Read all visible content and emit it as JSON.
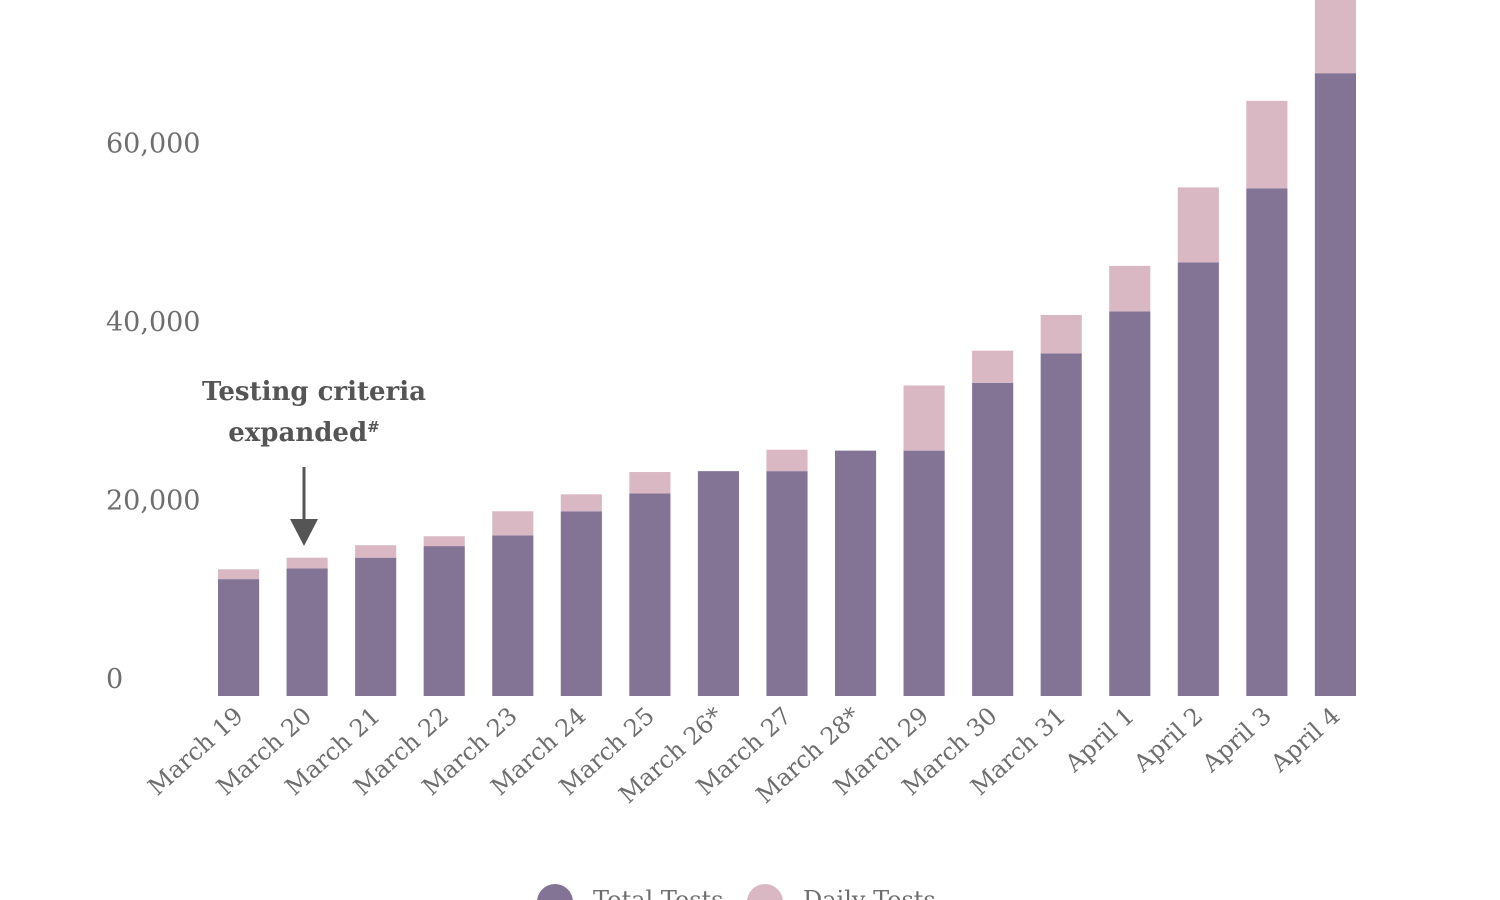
{
  "chart_data": {
    "type": "bar",
    "stacked": true,
    "categories": [
      "March 19",
      "March 20",
      "March 21",
      "March 22",
      "March 23",
      "March 24",
      "March 25",
      "March 26*",
      "March 27",
      "March 28*",
      "March 29",
      "March 30",
      "March 31",
      "April 1",
      "April 2",
      "April 3",
      "April 4"
    ],
    "series": [
      {
        "name": "Total Tests",
        "color": "#837496",
        "values": [
          13100,
          14300,
          15500,
          16800,
          18000,
          20700,
          22700,
          25200,
          25200,
          27500,
          27500,
          35100,
          38400,
          43100,
          48600,
          56900,
          69800
        ]
      },
      {
        "name": "Daily Tests",
        "color": "#d9b8c4",
        "values": [
          1100,
          1200,
          1400,
          1100,
          2700,
          1900,
          2400,
          0,
          2400,
          0,
          7300,
          3600,
          4300,
          5100,
          8400,
          9800,
          9600
        ]
      }
    ],
    "yticks": [
      0,
      20000,
      40000,
      60000
    ],
    "ytick_labels": [
      "0",
      "20,000",
      "40,000",
      "60,000"
    ],
    "ylim": [
      0,
      78000
    ],
    "grid": false,
    "legend_position": "bottom-center",
    "annotation": {
      "text_line1": "Testing criteria",
      "text_line2": "expanded",
      "marker": "#",
      "category": "March 20"
    }
  }
}
